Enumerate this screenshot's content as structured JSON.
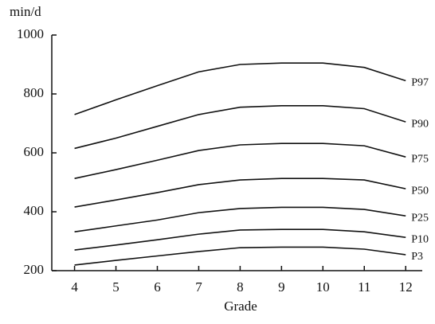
{
  "chart_data": {
    "type": "line",
    "y_label": "min/d",
    "x_label": "Grade",
    "x": [
      4,
      5,
      6,
      7,
      8,
      9,
      10,
      11,
      12
    ],
    "xlim": [
      3.45,
      12.4
    ],
    "xticks": [
      4,
      5,
      6,
      7,
      8,
      9,
      10,
      11,
      12
    ],
    "ylim": [
      200,
      1000
    ],
    "yticks": [
      200,
      400,
      600,
      800,
      1000
    ],
    "color": "#111111",
    "series": [
      {
        "name": "P97",
        "values": [
          730,
          780,
          828,
          875,
          900,
          905,
          905,
          890,
          845
        ]
      },
      {
        "name": "P90",
        "values": [
          615,
          650,
          690,
          730,
          755,
          760,
          760,
          750,
          705
        ]
      },
      {
        "name": "P75",
        "values": [
          513,
          543,
          575,
          608,
          627,
          632,
          632,
          624,
          586
        ]
      },
      {
        "name": "P50",
        "values": [
          416,
          440,
          465,
          492,
          508,
          513,
          513,
          508,
          478
        ]
      },
      {
        "name": "P25",
        "values": [
          332,
          352,
          372,
          397,
          411,
          415,
          415,
          408,
          386
        ]
      },
      {
        "name": "P10",
        "values": [
          270,
          287,
          305,
          324,
          338,
          340,
          340,
          332,
          313
        ]
      },
      {
        "name": "P3",
        "values": [
          219,
          235,
          250,
          265,
          278,
          280,
          280,
          273,
          254
        ]
      }
    ]
  }
}
